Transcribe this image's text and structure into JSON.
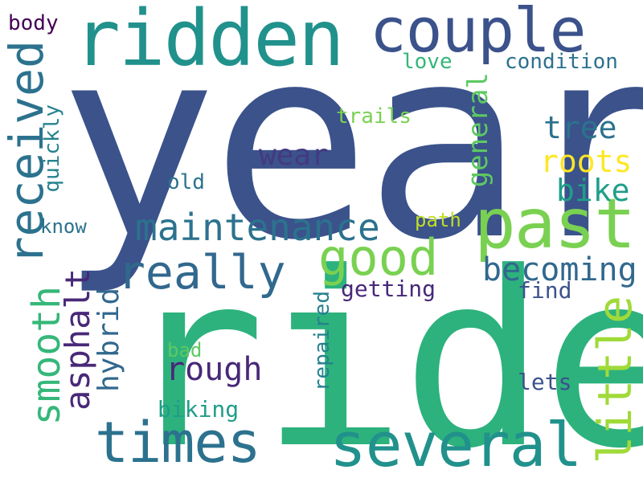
{
  "words": [
    {
      "id": "year",
      "text": "year",
      "color": "#3b528b"
    },
    {
      "id": "ride",
      "text": "ride",
      "color": "#2db27d"
    },
    {
      "id": "ridden",
      "text": "ridden",
      "color": "#21918c"
    },
    {
      "id": "couple",
      "text": "couple",
      "color": "#3b528b"
    },
    {
      "id": "past",
      "text": "past",
      "color": "#7ad151"
    },
    {
      "id": "several",
      "text": "several",
      "color": "#21918c"
    },
    {
      "id": "times",
      "text": "times",
      "color": "#2c728e"
    },
    {
      "id": "really",
      "text": "really",
      "color": "#31688e"
    },
    {
      "id": "good",
      "text": "good",
      "color": "#7ad151"
    },
    {
      "id": "maintenance",
      "text": "maintenance",
      "color": "#2c728e"
    },
    {
      "id": "received",
      "text": "received",
      "color": "#2c728e"
    },
    {
      "id": "smooth",
      "text": "smooth",
      "color": "#35b779"
    },
    {
      "id": "asphalt",
      "text": "asphalt",
      "color": "#482878"
    },
    {
      "id": "little",
      "text": "little",
      "color": "#a0da39"
    },
    {
      "id": "becoming",
      "text": "becoming",
      "color": "#31688e"
    },
    {
      "id": "roots",
      "text": "roots",
      "color": "#fde725"
    },
    {
      "id": "tree",
      "text": "tree",
      "color": "#2c728e"
    },
    {
      "id": "bike",
      "text": "bike",
      "color": "#1f9e89"
    },
    {
      "id": "general",
      "text": "general",
      "color": "#5ec962"
    },
    {
      "id": "wear",
      "text": "wear",
      "color": "#443983"
    },
    {
      "id": "rough",
      "text": "rough",
      "color": "#482878"
    },
    {
      "id": "hybrid",
      "text": "hybrid",
      "color": "#31688e"
    },
    {
      "id": "quickly",
      "text": "quickly",
      "color": "#26828e"
    },
    {
      "id": "repaired",
      "text": "repaired",
      "color": "#26828e"
    },
    {
      "id": "getting",
      "text": "getting",
      "color": "#482878"
    },
    {
      "id": "condition",
      "text": "condition",
      "color": "#2c728e"
    },
    {
      "id": "love",
      "text": "love",
      "color": "#35b779"
    },
    {
      "id": "trails",
      "text": "trails",
      "color": "#7ad151"
    },
    {
      "id": "body",
      "text": "body",
      "color": "#440154"
    },
    {
      "id": "know",
      "text": "know",
      "color": "#2c728e"
    },
    {
      "id": "old",
      "text": "old",
      "color": "#2c728e"
    },
    {
      "id": "path",
      "text": "path",
      "color": "#c2df23"
    },
    {
      "id": "find",
      "text": "find",
      "color": "#3b528b"
    },
    {
      "id": "lets",
      "text": "lets",
      "color": "#3b528b"
    },
    {
      "id": "bad",
      "text": "bad",
      "color": "#5ec962"
    },
    {
      "id": "biking",
      "text": "biking",
      "color": "#1f9e89"
    }
  ]
}
